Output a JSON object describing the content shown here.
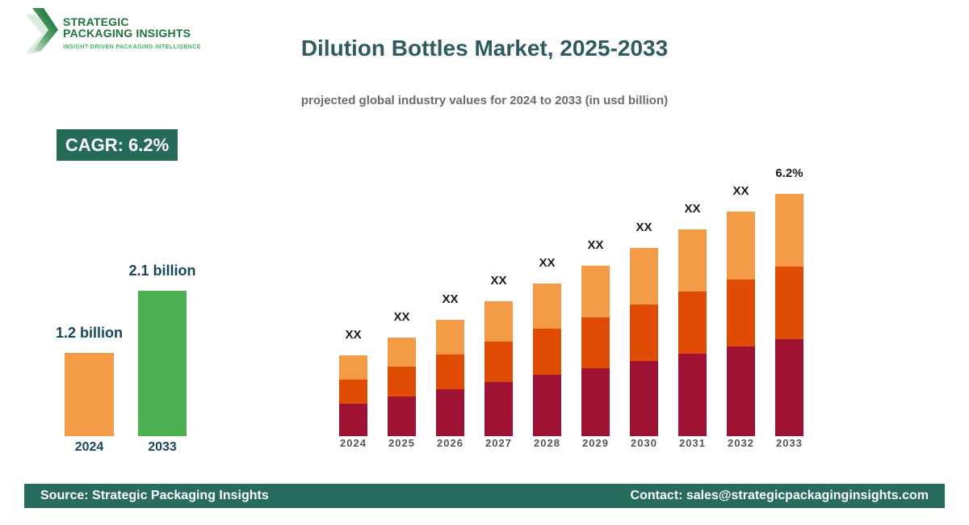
{
  "brand": {
    "name_line1": "STRATEGIC",
    "name_line2": "PACKAGING INSIGHTS",
    "tagline": "INSIGHT-DRIVEN PACKAGING INTELLIGENCE",
    "colors": {
      "dark_green": "#1d753c",
      "light_green": "#3fae62"
    }
  },
  "header": {
    "title": "Dilution Bottles Market, 2025-2033",
    "subtitle": "projected global industry values for 2024 to 2033 (in usd billion)"
  },
  "cagr_badge": {
    "label": "CAGR: 6.2%",
    "bg": "#266b58"
  },
  "chart_data": [
    {
      "name": "growth-summary",
      "type": "bar",
      "categories": [
        "2024",
        "2033"
      ],
      "values": [
        1.2,
        2.1
      ],
      "value_labels": [
        "1.2 billion",
        "2.1 billion"
      ],
      "unit": "usd billion",
      "bar_colors": [
        "#f39b46",
        "#4caf52"
      ],
      "label_color": "#15475f"
    },
    {
      "name": "projection-by-year",
      "type": "stacked-bar",
      "categories": [
        "2024",
        "2025",
        "2026",
        "2027",
        "2028",
        "2029",
        "2030",
        "2031",
        "2032",
        "2033"
      ],
      "bar_labels": [
        "XX",
        "XX",
        "XX",
        "XX",
        "XX",
        "XX",
        "XX",
        "XX",
        "XX",
        "6.2%"
      ],
      "value_axis": "unlabeled",
      "grid": false,
      "series": [
        {
          "name": "tier-bottom",
          "color": "#a01234",
          "values": [
            40,
            49,
            58,
            67,
            76,
            84,
            93,
            102,
            111,
            120
          ]
        },
        {
          "name": "tier-middle",
          "color": "#e14c05",
          "values": [
            30,
            37,
            43,
            50,
            57,
            63,
            70,
            77,
            83,
            90
          ]
        },
        {
          "name": "tier-top",
          "color": "#f39b46",
          "values": [
            30,
            36,
            43,
            50,
            56,
            64,
            70,
            77,
            84,
            90
          ]
        }
      ]
    }
  ],
  "footer": {
    "source": "Source: Strategic Packaging Insights",
    "contact": "Contact: sales@strategicpackaginginsights.com",
    "bg": "#276c5d"
  }
}
